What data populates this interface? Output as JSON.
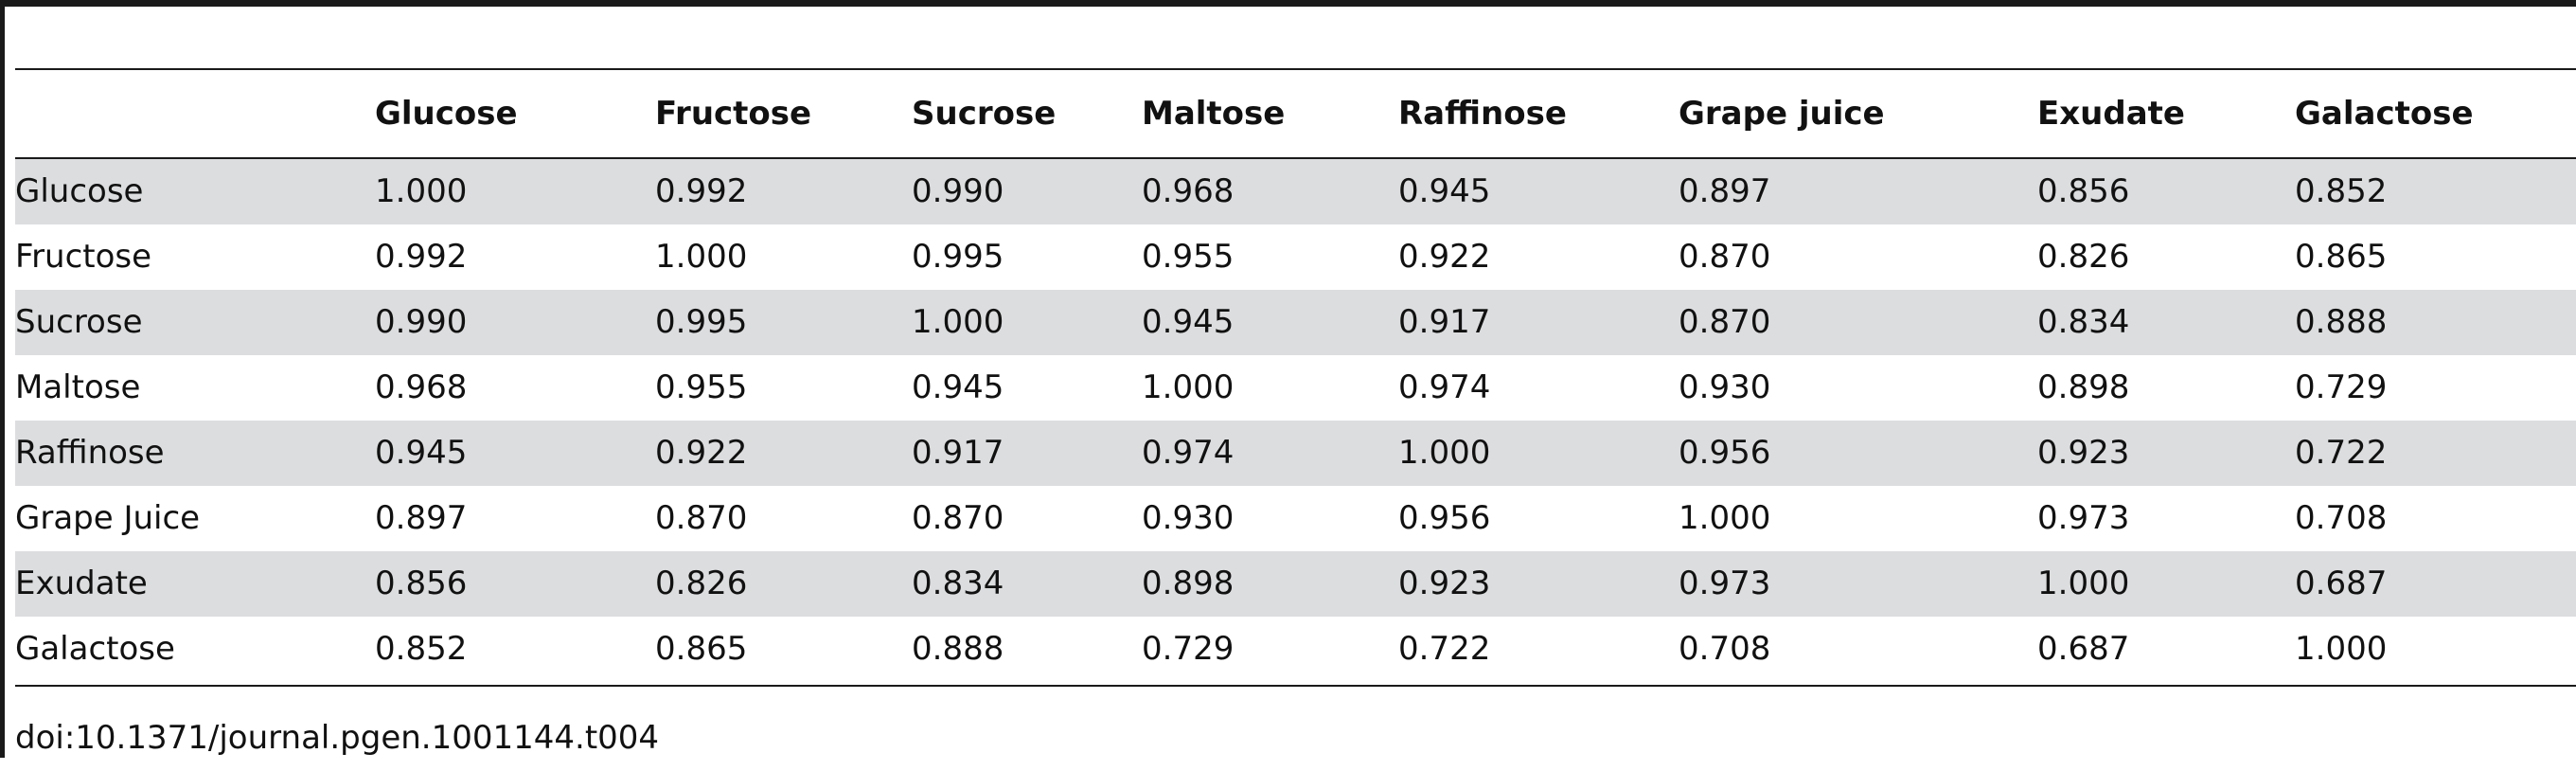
{
  "table": {
    "columns": [
      "Glucose",
      "Fructose",
      "Sucrose",
      "Maltose",
      "Raffinose",
      "Grape juice",
      "Exudate",
      "Galactose"
    ],
    "rows": [
      {
        "label": "Glucose",
        "cells": [
          "1.000",
          "0.992",
          "0.990",
          "0.968",
          "0.945",
          "0.897",
          "0.856",
          "0.852"
        ]
      },
      {
        "label": "Fructose",
        "cells": [
          "0.992",
          "1.000",
          "0.995",
          "0.955",
          "0.922",
          "0.870",
          "0.826",
          "0.865"
        ]
      },
      {
        "label": "Sucrose",
        "cells": [
          "0.990",
          "0.995",
          "1.000",
          "0.945",
          "0.917",
          "0.870",
          "0.834",
          "0.888"
        ]
      },
      {
        "label": "Maltose",
        "cells": [
          "0.968",
          "0.955",
          "0.945",
          "1.000",
          "0.974",
          "0.930",
          "0.898",
          "0.729"
        ]
      },
      {
        "label": "Raffinose",
        "cells": [
          "0.945",
          "0.922",
          "0.917",
          "0.974",
          "1.000",
          "0.956",
          "0.923",
          "0.722"
        ]
      },
      {
        "label": "Grape Juice",
        "cells": [
          "0.897",
          "0.870",
          "0.870",
          "0.930",
          "0.956",
          "1.000",
          "0.973",
          "0.708"
        ]
      },
      {
        "label": "Exudate",
        "cells": [
          "0.856",
          "0.826",
          "0.834",
          "0.898",
          "0.923",
          "0.973",
          "1.000",
          "0.687"
        ]
      },
      {
        "label": "Galactose",
        "cells": [
          "0.852",
          "0.865",
          "0.888",
          "0.729",
          "0.722",
          "0.708",
          "0.687",
          "1.000"
        ]
      }
    ]
  },
  "footer": {
    "doi": "doi:10.1371/journal.pgen.1001144.t004"
  }
}
